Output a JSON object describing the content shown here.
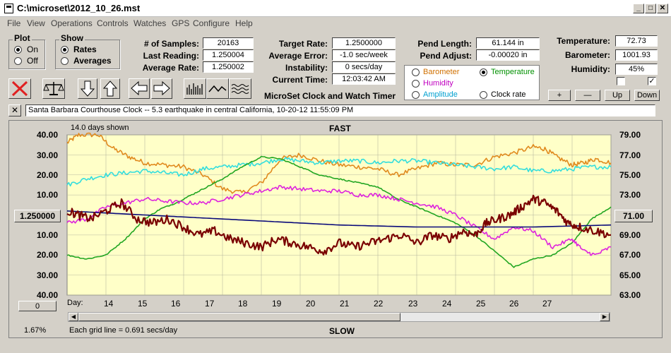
{
  "window": {
    "title": "C:\\microset\\2012_10_26.mst"
  },
  "menu": [
    "File",
    "View",
    "Operations",
    "Controls",
    "Watches",
    "GPS",
    "Configure",
    "Help"
  ],
  "plot_group": {
    "title": "Plot",
    "on_label": "On",
    "off_label": "Off",
    "selected": "On"
  },
  "show_group": {
    "title": "Show",
    "rates_label": "Rates",
    "averages_label": "Averages",
    "selected": "Rates"
  },
  "stats": {
    "samples_label": "# of Samples:",
    "samples_value": "20163",
    "last_label": "Last Reading:",
    "last_value": "1.250004",
    "avg_label": "Average Rate:",
    "avg_value": "1.250002",
    "target_label": "Target Rate:",
    "target_value": "1.2500000",
    "avgerr_label": "Average Error:",
    "avgerr_value": "-1.0 sec/week",
    "instab_label": "Instability:",
    "instab_value": "0 secs/day",
    "curtime_label": "Current Time:",
    "curtime_value": "12:03:42 AM",
    "pendlen_label": "Pend Length:",
    "pendlen_value": "61.144 in",
    "pendadj_label": "Pend Adjust:",
    "pendadj_value": "-0.00020 in",
    "temp_label": "Temperature:",
    "temp_value": "72.73",
    "baro_label": "Barometer:",
    "baro_value": "1001.93",
    "humid_label": "Humidity:",
    "humid_value": "45%"
  },
  "second_axis": {
    "options": [
      {
        "label": "Barometer",
        "color": "#d07000",
        "selected": false
      },
      {
        "label": "Temperature",
        "color": "#009000",
        "selected": true
      },
      {
        "label": "Humidity",
        "color": "#c000c0",
        "selected": false
      },
      {
        "label": "Clock rate",
        "color": "#000000",
        "selected": false
      },
      {
        "label": "Amplitude",
        "color": "#00a0d0",
        "selected": false
      }
    ]
  },
  "checkboxes": [
    {
      "checked": false
    },
    {
      "checked": true
    }
  ],
  "axis_buttons": {
    "plus": "+",
    "minus": "—",
    "up": "Up",
    "down": "Down"
  },
  "app_caption": "MicroSet Clock and Watch Timer",
  "note": "Santa Barbara Courthouse Clock  --  5.3 earthquake in central California, 10-20-12 11:55:09 PM",
  "close_note": "✕",
  "chart_labels": {
    "days_shown": "14.0 days shown",
    "top": "FAST",
    "bottom": "SLOW",
    "grid_note": "Each grid line = 0.691 secs/day",
    "percent": "1.67%",
    "day_label": "Day:",
    "left_center": "1.250000",
    "right_center": "71.00",
    "left_zero": "0"
  },
  "chart_data": {
    "type": "line",
    "title": "",
    "xlabel": "Day:",
    "x_ticks": [
      14,
      15,
      16,
      17,
      18,
      19,
      20,
      21,
      22,
      23,
      24,
      25,
      26,
      27
    ],
    "xlim": [
      13,
      27
    ],
    "left_axis": {
      "tick_labels": [
        "40.00",
        "30.00",
        "20.00",
        "10.00",
        "1.250000",
        "10.00",
        "20.00",
        "30.00",
        "40.00"
      ],
      "ylim": [
        -40,
        40
      ],
      "center_label": "1.250000"
    },
    "right_axis": {
      "tick_labels": [
        "79.00",
        "77.00",
        "75.00",
        "73.00",
        "71.00",
        "69.00",
        "67.00",
        "65.00",
        "63.00"
      ],
      "ylim": [
        63,
        79
      ]
    },
    "grid": true,
    "series": [
      {
        "name": "Barometer",
        "color": "#e08a1e",
        "axis": "left",
        "noise": 1.2,
        "x": [
          13.0,
          13.3,
          13.8,
          14.2,
          14.6,
          15.0,
          15.5,
          16.0,
          16.5,
          17.0,
          17.5,
          18.0,
          18.5,
          19.0,
          19.5,
          20.0,
          20.5,
          21.0,
          21.5,
          22.0,
          22.5,
          23.0,
          23.5,
          24.0,
          24.5,
          25.0,
          25.3,
          25.6,
          26.0,
          26.3,
          26.6,
          27.0
        ],
        "y": [
          36,
          40,
          40,
          33,
          29,
          26,
          25,
          24,
          20,
          13,
          11,
          16,
          28,
          30,
          27,
          25,
          24,
          23,
          20,
          23,
          26,
          25,
          25,
          29,
          31,
          34,
          33,
          29,
          25,
          26,
          28,
          26
        ]
      },
      {
        "name": "Amplitude",
        "color": "#33dddd",
        "axis": "left",
        "noise": 1.1,
        "x": [
          13.0,
          13.5,
          14.0,
          14.5,
          15.0,
          15.5,
          16.0,
          16.5,
          17.0,
          17.5,
          18.0,
          18.5,
          19.0,
          19.5,
          20.0,
          20.5,
          21.0,
          21.5,
          22.0,
          22.5,
          23.0,
          23.5,
          24.0,
          24.5,
          25.0,
          25.5,
          26.0,
          26.5,
          27.0
        ],
        "y": [
          15,
          18,
          20,
          21,
          22,
          21,
          20,
          23,
          24,
          25,
          26,
          28,
          27,
          26,
          27,
          27,
          26,
          27,
          27,
          26,
          25,
          24,
          23,
          24,
          22,
          22,
          23,
          24,
          24
        ]
      },
      {
        "name": "Temperature",
        "color": "#22a622",
        "axis": "left",
        "noise": 0.3,
        "x": [
          13.0,
          13.5,
          14.0,
          14.5,
          15.0,
          15.4,
          15.8,
          16.2,
          16.6,
          17.0,
          17.5,
          18.0,
          18.5,
          19.0,
          19.5,
          20.0,
          20.5,
          21.0,
          21.5,
          22.0,
          22.5,
          23.0,
          23.5,
          24.0,
          24.5,
          25.0,
          25.5,
          26.0,
          26.5,
          27.0
        ],
        "y": [
          -20,
          -22,
          -20,
          -12,
          -2,
          3,
          6,
          10,
          14,
          18,
          24,
          29,
          28,
          24,
          20,
          18,
          16,
          14,
          8,
          4,
          0,
          -4,
          -10,
          -18,
          -26,
          -22,
          -20,
          -14,
          -2,
          4
        ]
      },
      {
        "name": "Humidity",
        "color": "#dd22dd",
        "axis": "left",
        "noise": 1.0,
        "x": [
          13.0,
          13.5,
          14.0,
          14.5,
          15.0,
          15.5,
          16.0,
          16.5,
          17.0,
          17.5,
          18.0,
          18.5,
          19.0,
          19.5,
          20.0,
          20.5,
          21.0,
          21.5,
          22.0,
          22.5,
          23.0,
          23.5,
          24.0,
          24.5,
          25.0,
          25.5,
          26.0,
          26.3,
          26.6,
          27.0
        ],
        "y": [
          -4,
          -2,
          4,
          6,
          8,
          7,
          6,
          6,
          8,
          10,
          12,
          14,
          13,
          12,
          12,
          10,
          10,
          8,
          6,
          4,
          0,
          -6,
          -12,
          -6,
          -8,
          -16,
          -12,
          -18,
          -20,
          -16
        ]
      },
      {
        "name": "Average rate",
        "color": "#0a0a7a",
        "axis": "left",
        "noise": 0,
        "x": [
          13.0,
          14.0,
          15.0,
          16.0,
          17.0,
          18.0,
          19.0,
          20.0,
          21.0,
          22.0,
          23.0,
          24.0,
          25.0,
          26.0,
          27.0
        ],
        "y": [
          2,
          1,
          0,
          -1,
          -2,
          -3,
          -4,
          -5,
          -5.5,
          -6,
          -6,
          -6,
          -6,
          -5.5,
          -5
        ]
      },
      {
        "name": "Clock rate",
        "color": "#7a0000",
        "axis": "left",
        "noise": 2.2,
        "x": [
          13.0,
          13.3,
          13.6,
          14.0,
          14.4,
          14.8,
          15.2,
          15.6,
          16.0,
          16.4,
          16.8,
          17.2,
          17.6,
          18.0,
          18.4,
          18.8,
          19.2,
          19.6,
          20.0,
          20.4,
          20.8,
          21.2,
          21.6,
          22.0,
          22.4,
          22.8,
          23.2,
          23.5,
          23.8,
          24.1,
          24.4,
          24.7,
          25.0,
          25.3,
          25.6,
          25.9,
          26.2,
          26.6,
          27.0
        ],
        "y": [
          2,
          0,
          -2,
          2,
          6,
          -2,
          -4,
          -2,
          -6,
          -10,
          -8,
          -12,
          -14,
          -16,
          -12,
          -14,
          -16,
          -18,
          -14,
          -16,
          -14,
          -12,
          -10,
          -14,
          -10,
          -12,
          -8,
          -10,
          -4,
          -2,
          0,
          4,
          8,
          6,
          2,
          -4,
          -6,
          -8,
          -10
        ]
      }
    ]
  }
}
